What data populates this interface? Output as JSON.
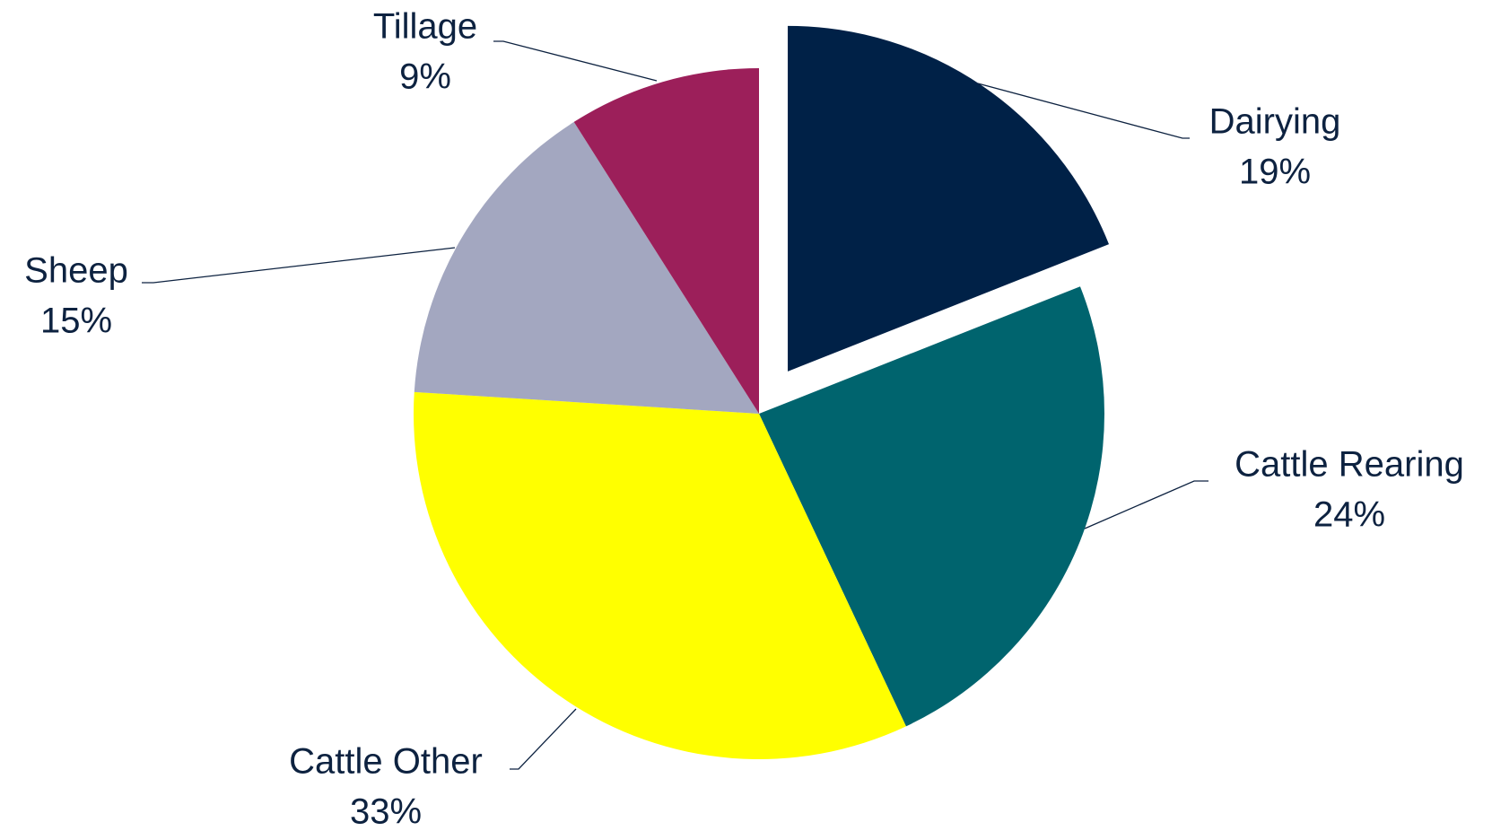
{
  "chart_data": {
    "type": "pie",
    "categories": [
      "Dairying",
      "Cattle Rearing",
      "Cattle Other",
      "Sheep",
      "Tillage"
    ],
    "values": [
      19,
      24,
      33,
      15,
      9
    ],
    "value_labels": [
      "19%",
      "24%",
      "33%",
      "15%",
      "9%"
    ],
    "colors": [
      "#002147",
      "#00646e",
      "#ffff00",
      "#a3a7c0",
      "#9c1f5a"
    ],
    "exploded": [
      true,
      false,
      false,
      false,
      false
    ]
  }
}
